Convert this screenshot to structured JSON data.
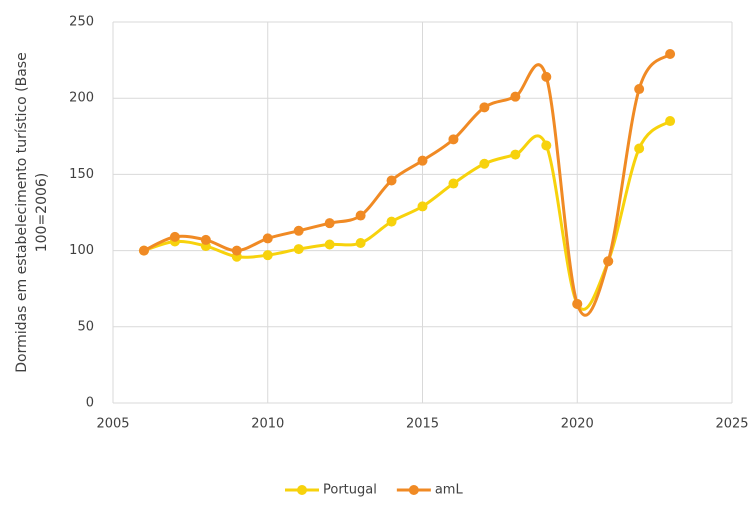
{
  "chart_data": {
    "type": "line",
    "ylabel": [
      "Dormidas em estabelecimento turístico (Base",
      "100=2006)"
    ],
    "x": [
      2006,
      2007,
      2008,
      2009,
      2010,
      2011,
      2012,
      2013,
      2014,
      2015,
      2016,
      2017,
      2018,
      2019,
      2020,
      2021,
      2022,
      2023
    ],
    "series": [
      {
        "name": "Portugal",
        "color": "#f7d20c",
        "values": [
          100,
          106,
          103,
          96,
          97,
          101,
          104,
          105,
          119,
          129,
          144,
          157,
          163,
          169,
          65,
          93,
          167,
          185
        ]
      },
      {
        "name": "amL",
        "color": "#f08a24",
        "values": [
          100,
          109,
          107,
          100,
          108,
          113,
          118,
          123,
          146,
          159,
          173,
          194,
          201,
          214,
          65,
          93,
          206,
          229
        ]
      }
    ],
    "xlim": [
      2005,
      2025
    ],
    "xticks": [
      2005,
      2010,
      2015,
      2020,
      2025
    ],
    "ylim": [
      0,
      250
    ],
    "yticks": [
      0,
      50,
      100,
      150,
      200,
      250
    ],
    "grid": true,
    "smooth": true,
    "legend": "bottom"
  }
}
